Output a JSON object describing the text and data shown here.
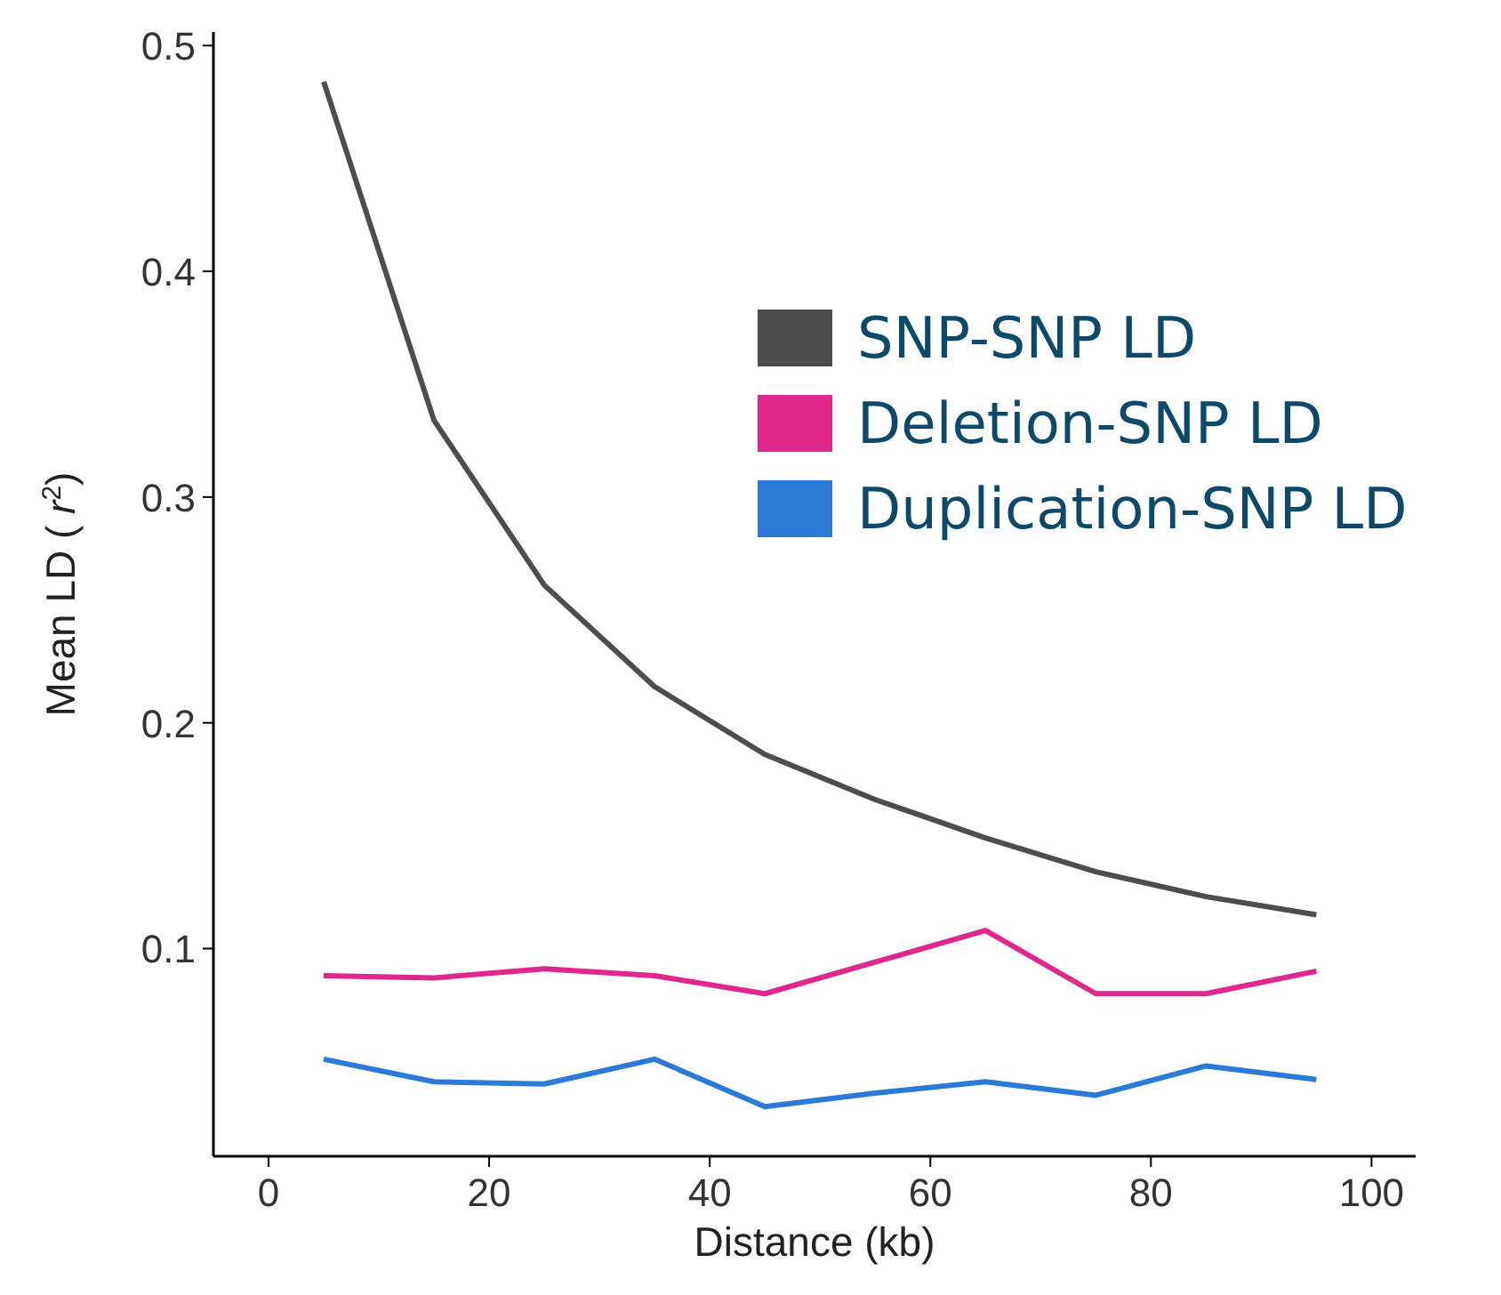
{
  "chart_data": {
    "type": "line",
    "xlabel": "Distance (kb)",
    "ylabel": "Mean LD ( r$^{2}$)",
    "x": [
      5,
      15,
      25,
      35,
      45,
      55,
      65,
      75,
      85,
      95
    ],
    "series": [
      {
        "name": "SNP-SNP LD",
        "color": "#4d4d4d",
        "values": [
          0.484,
          0.334,
          0.261,
          0.216,
          0.186,
          0.166,
          0.149,
          0.134,
          0.123,
          0.115
        ]
      },
      {
        "name": "Deletion-SNP LD",
        "color": "#e0288c",
        "values": [
          0.088,
          0.087,
          0.091,
          0.088,
          0.08,
          0.094,
          0.108,
          0.08,
          0.08,
          0.09
        ]
      },
      {
        "name": "Duplication-SNP LD",
        "color": "#2a7ad6",
        "values": [
          0.051,
          0.041,
          0.04,
          0.051,
          0.03,
          0.036,
          0.041,
          0.035,
          0.048,
          0.042
        ]
      }
    ],
    "xlim": [
      -5,
      104
    ],
    "ylim": [
      0.008,
      0.506
    ],
    "xticks": [
      0,
      20,
      40,
      60,
      80,
      100
    ],
    "yticks": [
      0.1,
      0.2,
      0.3,
      0.4,
      0.5
    ],
    "grid": false,
    "legend": "top right",
    "marker": "none",
    "line_style": "solid"
  }
}
